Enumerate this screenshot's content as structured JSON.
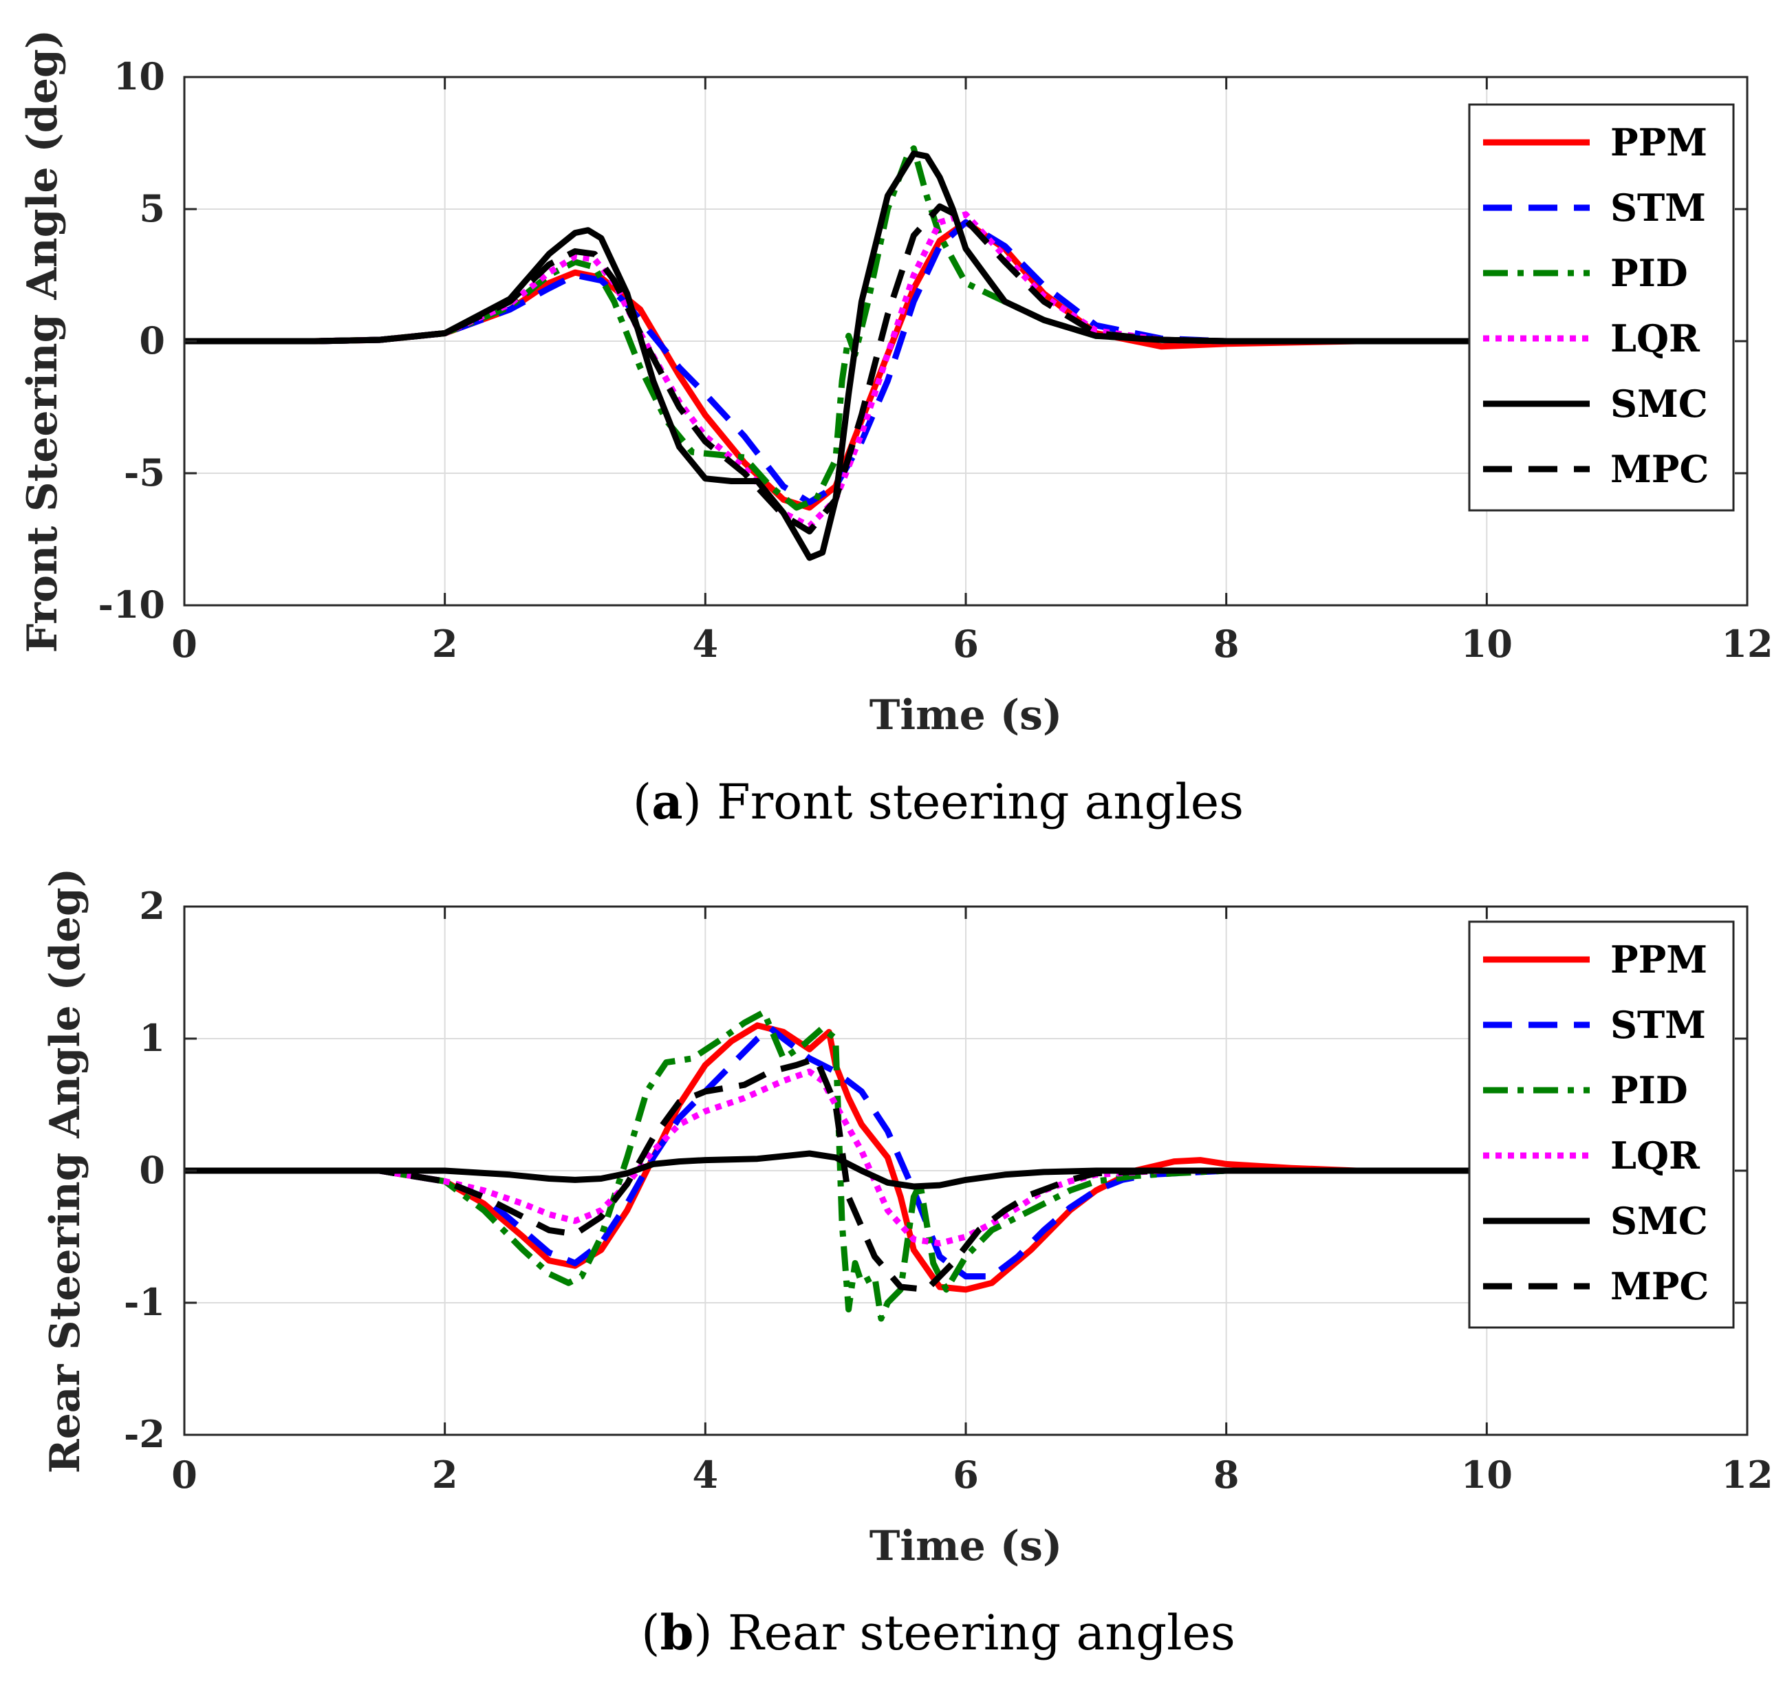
{
  "chart_data": [
    {
      "id": "a",
      "type": "line",
      "caption_letter": "a",
      "caption_text": "Front steering angles",
      "xlabel": "Time (s)",
      "ylabel": "Front Steering Angle (deg)",
      "xlim": [
        0,
        12
      ],
      "ylim": [
        -10,
        10
      ],
      "xticks": [
        0,
        2,
        4,
        6,
        8,
        10,
        12
      ],
      "yticks": [
        -10,
        -5,
        0,
        5,
        10
      ],
      "grid": true,
      "legend_position": "top-right",
      "series": [
        {
          "name": "PPM",
          "color": "#ff0000",
          "style": "solid",
          "x": [
            0,
            1,
            1.5,
            2,
            2.5,
            2.8,
            3.0,
            3.2,
            3.5,
            3.8,
            4.0,
            4.3,
            4.6,
            4.8,
            5.0,
            5.2,
            5.4,
            5.6,
            5.8,
            6.0,
            6.3,
            6.6,
            7.0,
            7.5,
            8.0,
            9.0,
            10.0
          ],
          "y": [
            0,
            0,
            0.05,
            0.3,
            1.2,
            2.2,
            2.6,
            2.4,
            1.2,
            -1.3,
            -2.8,
            -4.6,
            -6.0,
            -6.3,
            -5.5,
            -3.0,
            -0.5,
            2.0,
            3.8,
            4.5,
            3.5,
            1.8,
            0.3,
            -0.2,
            -0.1,
            0,
            0
          ]
        },
        {
          "name": "STM",
          "color": "#0000ff",
          "style": "dashed",
          "x": [
            0,
            1,
            1.5,
            2,
            2.5,
            2.8,
            3.0,
            3.2,
            3.4,
            3.6,
            3.8,
            4.0,
            4.3,
            4.6,
            4.8,
            5.0,
            5.2,
            5.4,
            5.6,
            5.8,
            6.0,
            6.3,
            6.6,
            7.0,
            7.5,
            8.0,
            10.0
          ],
          "y": [
            0,
            0,
            0.05,
            0.3,
            1.2,
            2.0,
            2.5,
            2.3,
            1.4,
            0.2,
            -1.0,
            -2.0,
            -3.6,
            -5.5,
            -6.1,
            -5.5,
            -3.8,
            -1.5,
            1.5,
            3.6,
            4.5,
            3.6,
            2.1,
            0.6,
            0.1,
            0,
            0
          ]
        },
        {
          "name": "PID",
          "color": "#008000",
          "style": "dashdot",
          "x": [
            0,
            1,
            1.5,
            2,
            2.5,
            2.8,
            3.0,
            3.15,
            3.3,
            3.5,
            3.7,
            3.9,
            4.1,
            4.3,
            4.5,
            4.7,
            4.85,
            5.0,
            5.05,
            5.1,
            5.15,
            5.25,
            5.4,
            5.55,
            5.6,
            5.7,
            5.8,
            6.0,
            6.3,
            6.6,
            7.0,
            7.5,
            8.0,
            10.0
          ],
          "y": [
            0,
            0,
            0.05,
            0.3,
            1.3,
            2.5,
            3.0,
            2.8,
            1.5,
            -1.0,
            -3.0,
            -4.2,
            -4.3,
            -4.4,
            -5.5,
            -6.3,
            -6.0,
            -4.5,
            -1.5,
            0.2,
            -0.5,
            1.5,
            5.0,
            7.0,
            7.3,
            5.5,
            4.0,
            2.2,
            1.5,
            0.8,
            0.2,
            0.05,
            0,
            0
          ]
        },
        {
          "name": "LQR",
          "color": "#ff00ff",
          "style": "dotted",
          "x": [
            0,
            1,
            1.5,
            2,
            2.5,
            2.8,
            3.0,
            3.15,
            3.3,
            3.5,
            3.8,
            4.0,
            4.3,
            4.6,
            4.8,
            5.0,
            5.2,
            5.4,
            5.6,
            5.8,
            6.0,
            6.3,
            6.6,
            7.0,
            7.5,
            8.0,
            10.0
          ],
          "y": [
            0,
            0,
            0.05,
            0.3,
            1.4,
            2.6,
            3.2,
            3.1,
            2.2,
            0.3,
            -2.3,
            -3.6,
            -4.8,
            -6.5,
            -7.0,
            -6.0,
            -3.5,
            -0.5,
            2.5,
            4.5,
            4.8,
            3.2,
            1.7,
            0.4,
            0.05,
            0,
            0
          ]
        },
        {
          "name": "SMC",
          "color": "#000000",
          "style": "solid",
          "x": [
            0,
            1,
            1.5,
            2,
            2.5,
            2.8,
            3.0,
            3.1,
            3.2,
            3.4,
            3.6,
            3.8,
            4.0,
            4.2,
            4.4,
            4.6,
            4.8,
            4.9,
            5.0,
            5.1,
            5.2,
            5.4,
            5.6,
            5.7,
            5.8,
            5.9,
            6.0,
            6.3,
            6.6,
            7.0,
            7.5,
            8.0,
            10.0
          ],
          "y": [
            0,
            0,
            0.05,
            0.3,
            1.6,
            3.3,
            4.1,
            4.2,
            3.9,
            1.8,
            -1.5,
            -4.0,
            -5.2,
            -5.3,
            -5.3,
            -6.5,
            -8.2,
            -8.0,
            -6.0,
            -2.0,
            1.5,
            5.5,
            7.1,
            7.0,
            6.2,
            5.0,
            3.5,
            1.5,
            0.8,
            0.2,
            0.05,
            0,
            0
          ]
        },
        {
          "name": "MPC",
          "color": "#000000",
          "style": "dashed",
          "x": [
            0,
            1,
            1.5,
            2,
            2.5,
            2.8,
            3.0,
            3.15,
            3.3,
            3.5,
            3.8,
            4.0,
            4.3,
            4.6,
            4.8,
            5.0,
            5.2,
            5.4,
            5.6,
            5.8,
            6.0,
            6.3,
            6.6,
            7.0,
            7.5,
            8.0,
            10.0
          ],
          "y": [
            0,
            0,
            0.05,
            0.3,
            1.5,
            2.9,
            3.4,
            3.3,
            2.3,
            0.3,
            -2.5,
            -3.8,
            -5.0,
            -6.6,
            -7.2,
            -6.0,
            -2.8,
            1.0,
            4.0,
            5.1,
            4.6,
            3.0,
            1.5,
            0.3,
            0.05,
            0,
            0
          ]
        }
      ]
    },
    {
      "id": "b",
      "type": "line",
      "caption_letter": "b",
      "caption_text": "Rear steering angles",
      "xlabel": "Time (s)",
      "ylabel": "Rear Steering Angle (deg)",
      "xlim": [
        0,
        12
      ],
      "ylim": [
        -2,
        2
      ],
      "xticks": [
        0,
        2,
        4,
        6,
        8,
        10,
        12
      ],
      "yticks": [
        -2,
        -1,
        0,
        1,
        2
      ],
      "grid": true,
      "legend_position": "top-right",
      "series": [
        {
          "name": "PPM",
          "color": "#ff0000",
          "style": "solid",
          "x": [
            0,
            1.5,
            2.0,
            2.3,
            2.6,
            2.8,
            3.0,
            3.2,
            3.4,
            3.6,
            3.8,
            4.0,
            4.2,
            4.4,
            4.6,
            4.8,
            4.95,
            5.0,
            5.1,
            5.2,
            5.4,
            5.5,
            5.6,
            5.8,
            6.0,
            6.2,
            6.5,
            6.8,
            7.0,
            7.3,
            7.6,
            7.8,
            8.0,
            8.5,
            9.0,
            10.0
          ],
          "y": [
            0,
            0,
            -0.08,
            -0.25,
            -0.5,
            -0.68,
            -0.72,
            -0.6,
            -0.3,
            0.1,
            0.5,
            0.8,
            0.98,
            1.1,
            1.05,
            0.92,
            1.05,
            0.8,
            0.55,
            0.35,
            0.1,
            -0.2,
            -0.6,
            -0.88,
            -0.9,
            -0.85,
            -0.6,
            -0.3,
            -0.15,
            0,
            0.07,
            0.08,
            0.05,
            0.02,
            0,
            0
          ]
        },
        {
          "name": "STM",
          "color": "#0000ff",
          "style": "dashed",
          "x": [
            0,
            1.5,
            2.0,
            2.3,
            2.6,
            2.8,
            3.0,
            3.2,
            3.4,
            3.6,
            3.8,
            4.0,
            4.2,
            4.4,
            4.5,
            4.6,
            4.8,
            5.0,
            5.2,
            5.4,
            5.6,
            5.8,
            6.0,
            6.2,
            6.4,
            6.6,
            6.8,
            7.0,
            7.2,
            7.4,
            8.0,
            10.0
          ],
          "y": [
            0,
            0,
            -0.08,
            -0.2,
            -0.45,
            -0.62,
            -0.7,
            -0.55,
            -0.25,
            0.1,
            0.4,
            0.6,
            0.8,
            1.0,
            1.08,
            1.0,
            0.85,
            0.75,
            0.6,
            0.3,
            -0.15,
            -0.65,
            -0.8,
            -0.8,
            -0.65,
            -0.45,
            -0.28,
            -0.15,
            -0.07,
            -0.03,
            0,
            0
          ]
        },
        {
          "name": "PID",
          "color": "#008000",
          "style": "dashdot",
          "x": [
            0,
            1.5,
            2.0,
            2.3,
            2.6,
            2.8,
            2.95,
            3.05,
            3.2,
            3.4,
            3.55,
            3.7,
            3.9,
            4.1,
            4.3,
            4.45,
            4.6,
            4.75,
            4.9,
            5.0,
            5.05,
            5.1,
            5.15,
            5.2,
            5.3,
            5.35,
            5.4,
            5.5,
            5.6,
            5.65,
            5.75,
            5.85,
            6.0,
            6.2,
            6.5,
            6.8,
            7.0,
            7.3,
            7.6,
            8.0,
            10.0
          ],
          "y": [
            0,
            0,
            -0.08,
            -0.3,
            -0.6,
            -0.78,
            -0.85,
            -0.8,
            -0.5,
            0.1,
            0.6,
            0.82,
            0.85,
            0.98,
            1.12,
            1.2,
            0.85,
            0.95,
            1.08,
            1.0,
            -0.4,
            -1.05,
            -0.7,
            -0.85,
            -0.8,
            -1.12,
            -1.0,
            -0.9,
            -0.2,
            -0.1,
            -0.7,
            -0.9,
            -0.65,
            -0.45,
            -0.3,
            -0.15,
            -0.08,
            -0.04,
            -0.02,
            0,
            0
          ]
        },
        {
          "name": "LQR",
          "color": "#ff00ff",
          "style": "dotted",
          "x": [
            0,
            1.5,
            2.0,
            2.3,
            2.6,
            2.8,
            3.0,
            3.2,
            3.4,
            3.6,
            3.8,
            4.0,
            4.3,
            4.6,
            4.8,
            4.9,
            5.0,
            5.2,
            5.4,
            5.6,
            5.8,
            6.0,
            6.2,
            6.4,
            6.6,
            6.8,
            7.0,
            7.5,
            10.0
          ],
          "y": [
            0,
            0,
            -0.08,
            -0.15,
            -0.25,
            -0.33,
            -0.38,
            -0.3,
            -0.1,
            0.15,
            0.35,
            0.45,
            0.55,
            0.68,
            0.75,
            0.68,
            0.5,
            0.15,
            -0.3,
            -0.52,
            -0.55,
            -0.5,
            -0.4,
            -0.28,
            -0.15,
            -0.08,
            -0.03,
            0,
            0
          ]
        },
        {
          "name": "SMC",
          "color": "#000000",
          "style": "solid",
          "x": [
            0,
            2.0,
            2.5,
            2.8,
            3.0,
            3.2,
            3.4,
            3.6,
            3.8,
            4.0,
            4.4,
            4.6,
            4.8,
            5.0,
            5.2,
            5.4,
            5.6,
            5.8,
            6.0,
            6.3,
            6.6,
            7.0,
            7.5,
            10.0
          ],
          "y": [
            0,
            0,
            -0.03,
            -0.06,
            -0.07,
            -0.06,
            -0.02,
            0.05,
            0.07,
            0.08,
            0.09,
            0.11,
            0.13,
            0.1,
            0.0,
            -0.09,
            -0.12,
            -0.11,
            -0.07,
            -0.03,
            -0.01,
            0,
            0,
            0
          ]
        },
        {
          "name": "MPC",
          "color": "#000000",
          "style": "dashed",
          "x": [
            0,
            1.5,
            2.0,
            2.3,
            2.6,
            2.8,
            3.0,
            3.2,
            3.4,
            3.6,
            3.8,
            4.0,
            4.3,
            4.5,
            4.7,
            4.85,
            5.0,
            5.1,
            5.3,
            5.5,
            5.7,
            5.9,
            6.1,
            6.3,
            6.5,
            6.8,
            7.0,
            7.5,
            10.0
          ],
          "y": [
            0,
            0,
            -0.08,
            -0.2,
            -0.35,
            -0.45,
            -0.48,
            -0.35,
            -0.1,
            0.25,
            0.52,
            0.6,
            0.65,
            0.75,
            0.8,
            0.85,
            0.5,
            -0.2,
            -0.65,
            -0.88,
            -0.9,
            -0.7,
            -0.45,
            -0.3,
            -0.18,
            -0.07,
            -0.02,
            0,
            0
          ]
        }
      ]
    }
  ]
}
